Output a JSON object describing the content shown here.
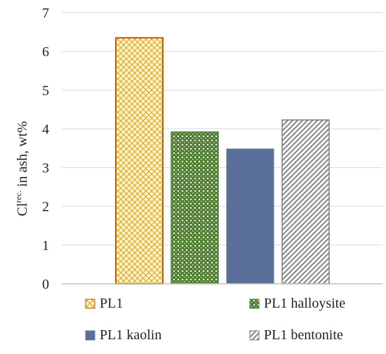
{
  "chart_data": {
    "type": "bar",
    "categories": [
      "PL1",
      "PL1 halloysite",
      "PL1 kaolin",
      "PL1 bentonite"
    ],
    "values": [
      6.35,
      3.92,
      3.48,
      4.23
    ],
    "ylabel": {
      "prefix": "Cl",
      "superscript": "rec.",
      "suffix": " in ash, wt%"
    },
    "ylim": [
      0,
      7
    ],
    "yticks": [
      0,
      1,
      2,
      3,
      4,
      5,
      6,
      7
    ],
    "grid": true,
    "legend": {
      "placement": "bottom",
      "entries": [
        "PL1",
        "PL1 halloysite",
        "PL1 kaolin",
        "PL1 bentonite"
      ]
    },
    "colors": {
      "PL1": "#c55a11",
      "PL1 halloysite": "#548235",
      "PL1 kaolin": "#5a6f9a",
      "PL1 bentonite": "#7f7f7f",
      "PL1_fill": "#f2dc8c"
    }
  }
}
